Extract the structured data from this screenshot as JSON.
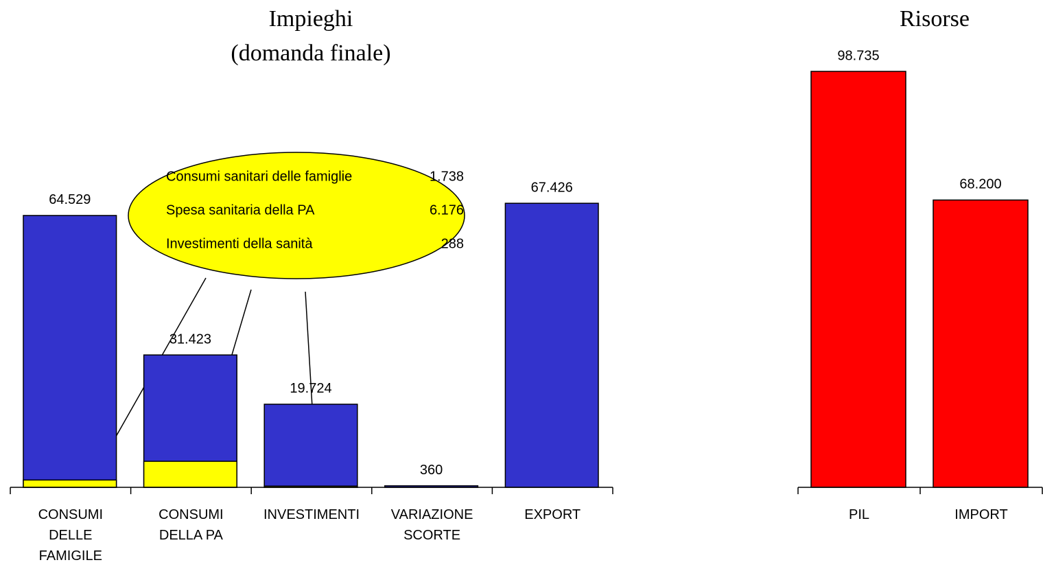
{
  "chart_data": [
    {
      "type": "bar",
      "title": "Impieghi",
      "subtitle": "(domanda finale)",
      "categories": [
        "CONSUMI DELLE FAMIGILE",
        "CONSUMI DELLA PA",
        "INVESTIMENTI",
        "VARIAZIONE SCORTE",
        "EXPORT"
      ],
      "series": [
        {
          "color": "#3333cc",
          "values": [
            64529,
            31423,
            19724,
            360,
            67426
          ],
          "value_labels": [
            "64.529",
            "31.423",
            "19.724",
            "360",
            "67.426"
          ]
        },
        {
          "color": "#ffff00",
          "values": [
            1738,
            6176,
            288,
            null,
            null
          ],
          "value_labels": [
            "1.738",
            "6.176",
            "288",
            null,
            null
          ]
        }
      ],
      "callout_labels": [
        "Consumi sanitari delle famiglie",
        "Spesa sanitaria della PA",
        "Investimenti della sanità"
      ]
    },
    {
      "type": "bar",
      "title": "Risorse",
      "categories": [
        "PIL",
        "IMPORT"
      ],
      "series": [
        {
          "color": "#ff0000",
          "values": [
            98735,
            68200
          ],
          "value_labels": [
            "98.735",
            "68.200"
          ]
        }
      ]
    }
  ]
}
